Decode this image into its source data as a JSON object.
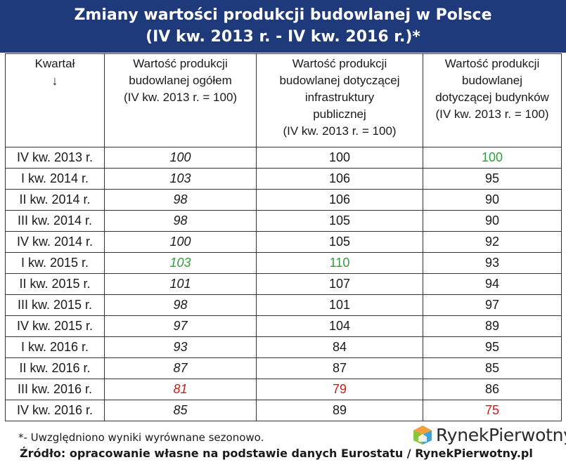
{
  "title": {
    "line1": "Zmiany wartości produkcji budowlanej w Polsce",
    "line2": "(IV kw. 2013 r. - IV kw. 2016 r.)*"
  },
  "table": {
    "headers": {
      "col1_label": "Kwartał",
      "col1_arrow": "↓",
      "col2": [
        "Wartość produkcji",
        "budowlanej ogółem",
        "(IV kw. 2013 r. = 100)"
      ],
      "col3": [
        "Wartość produkcji",
        "budowlanej dotyczącej",
        "infrastruktury",
        "publicznej",
        "(IV kw. 2013 r. = 100)"
      ],
      "col4": [
        "Wartość produkcji",
        "budowlanej",
        "dotyczącej budynków",
        "(IV kw. 2013 r. = 100)"
      ]
    },
    "rows": [
      {
        "quarter": "IV kw. 2013 r.",
        "total": "100",
        "infra": "100",
        "buildings": "100"
      },
      {
        "quarter": "I kw. 2014 r.",
        "total": "103",
        "infra": "106",
        "buildings": "95"
      },
      {
        "quarter": "II kw. 2014 r.",
        "total": "98",
        "infra": "106",
        "buildings": "90"
      },
      {
        "quarter": "III kw. 2014 r.",
        "total": "98",
        "infra": "105",
        "buildings": "90"
      },
      {
        "quarter": "IV kw. 2014 r.",
        "total": "100",
        "infra": "105",
        "buildings": "92"
      },
      {
        "quarter": "I kw. 2015 r.",
        "total": "103",
        "infra": "110",
        "buildings": "93"
      },
      {
        "quarter": "II kw. 2015 r.",
        "total": "101",
        "infra": "107",
        "buildings": "94"
      },
      {
        "quarter": "III kw. 2015 r.",
        "total": "98",
        "infra": "101",
        "buildings": "97"
      },
      {
        "quarter": "IV kw. 2015 r.",
        "total": "97",
        "infra": "104",
        "buildings": "89"
      },
      {
        "quarter": "I kw. 2016 r.",
        "total": "93",
        "infra": "84",
        "buildings": "95"
      },
      {
        "quarter": "II kw. 2016 r.",
        "total": "87",
        "infra": "87",
        "buildings": "85"
      },
      {
        "quarter": "III kw. 2016 r.",
        "total": "81",
        "infra": "79",
        "buildings": "86"
      },
      {
        "quarter": "IV kw. 2016 r.",
        "total": "85",
        "infra": "89",
        "buildings": "75"
      }
    ],
    "highlights": {
      "green": [
        "0.buildings",
        "5.total",
        "5.infra"
      ],
      "red": [
        "11.total",
        "11.infra",
        "12.buildings"
      ]
    }
  },
  "colors": {
    "title_bg": "#1f3a7a",
    "title_text": "#ffffff",
    "highlight_max": "#2e9e3e",
    "highlight_min": "#c41e1e"
  },
  "footnote": "*- Uwzględniono wyniki wyrównane sezonowo.",
  "source": "Źródło: opracowanie własne na podstawie danych Eurostatu / RynekPierwotny.pl",
  "logo": {
    "text_part1": "Rynek",
    "text_part2": "Pierwotny",
    "icon": "house-cube-logo-icon"
  }
}
